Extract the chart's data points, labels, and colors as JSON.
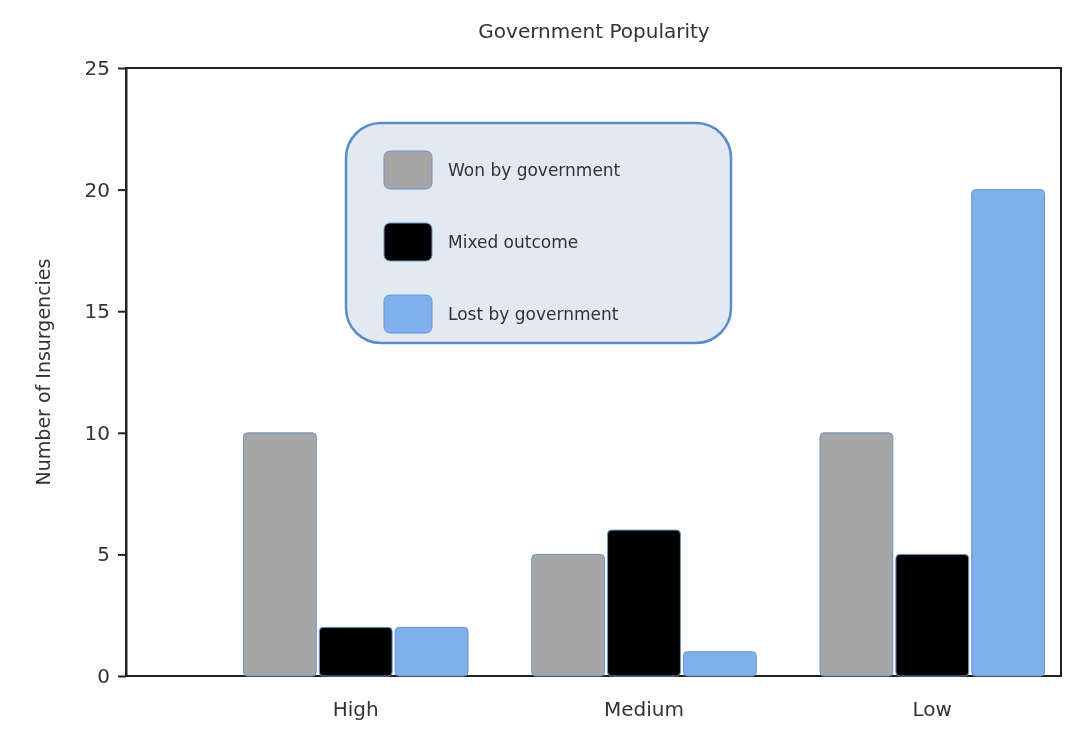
{
  "chart_data": {
    "type": "bar",
    "title": "Government Popularity",
    "ylabel": "Number of Insurgencies",
    "categories": [
      "High",
      "Medium",
      "Low"
    ],
    "series": [
      {
        "name": "Won by government",
        "color": "#a6a6a6",
        "values": [
          10,
          5,
          10
        ]
      },
      {
        "name": "Mixed outcome",
        "color": "#000000",
        "values": [
          2,
          6,
          5
        ]
      },
      {
        "name": "Lost by government",
        "color": "#7fb0ec",
        "values": [
          2,
          1,
          20
        ]
      }
    ],
    "ylim": [
      0,
      25
    ],
    "yticks": [
      0,
      5,
      10,
      15,
      20,
      25
    ],
    "grid": false,
    "legend": "top left"
  }
}
